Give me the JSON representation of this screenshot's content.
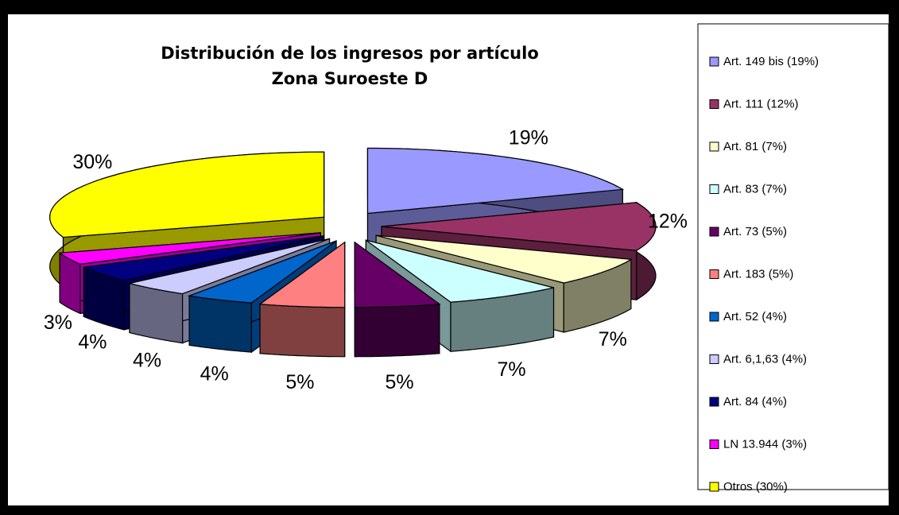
{
  "chart_data": {
    "type": "pie3d",
    "title": "Distribución de los ingresos por artículo",
    "subtitle": "Zona Suroeste D",
    "categories": [
      "Art. 149 bis (19%)",
      "Art. 111 (12%)",
      "Art. 81 (7%)",
      "Art. 83 (7%)",
      "Art. 73 (5%)",
      "Art. 183 (5%)",
      "Art. 52 (4%)",
      "Art. 6,1,63 (4%)",
      "Art. 84 (4%)",
      "LN 13.944 (3%)",
      "Otros (30%)"
    ],
    "values": [
      19,
      12,
      7,
      7,
      5,
      5,
      4,
      4,
      4,
      3,
      30
    ],
    "value_labels": [
      "19%",
      "12%",
      "7%",
      "7%",
      "5%",
      "5%",
      "4%",
      "4%",
      "4%",
      "3%",
      "30%"
    ],
    "colors": [
      "#9999ff",
      "#993366",
      "#ffffcc",
      "#ccffff",
      "#660066",
      "#ff8080",
      "#0066cc",
      "#ccccff",
      "#000080",
      "#ff00ff",
      "#ffff00"
    ],
    "legend": "right"
  }
}
